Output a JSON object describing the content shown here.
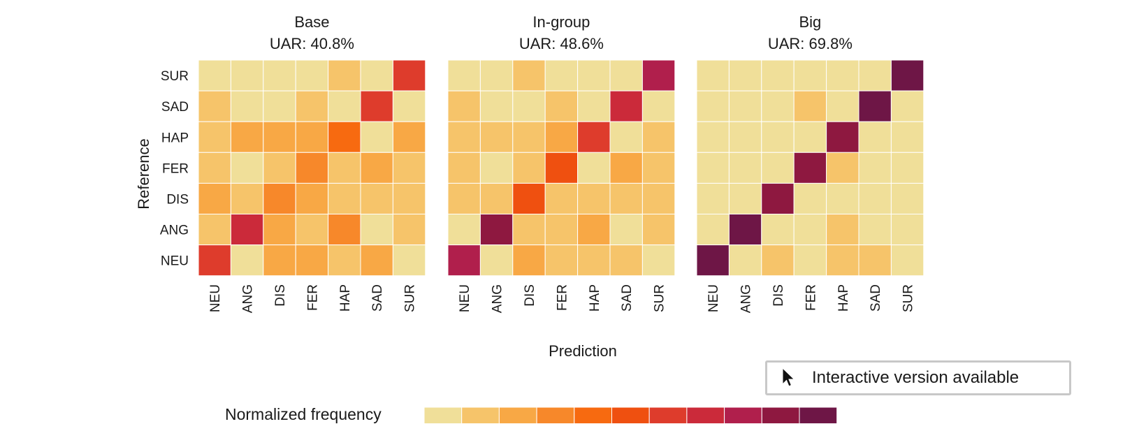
{
  "colors": {
    "palette": [
      "#f0df99",
      "#f6c46a",
      "#f8a845",
      "#f7882a",
      "#f76a10",
      "#ef5010",
      "#de3c2c",
      "#cb2a3a",
      "#b01f4c",
      "#8e1840",
      "#6e1646"
    ]
  },
  "legend": {
    "title": "Normalized frequency"
  },
  "interactive": {
    "label": "Interactive version available"
  },
  "chart_data": [
    {
      "type": "heatmap",
      "title": "Base",
      "subtitle": "UAR: 40.8%",
      "xlabel": "Prediction",
      "ylabel": "Reference",
      "x_categories": [
        "NEU",
        "ANG",
        "DIS",
        "FER",
        "HAP",
        "SAD",
        "SUR"
      ],
      "y_categories": [
        "SUR",
        "SAD",
        "HAP",
        "FER",
        "DIS",
        "ANG",
        "NEU"
      ],
      "levels": [
        [
          0,
          0,
          0,
          0,
          1,
          0,
          6
        ],
        [
          1,
          0,
          0,
          1,
          0,
          6,
          0
        ],
        [
          1,
          2,
          2,
          2,
          4,
          0,
          2
        ],
        [
          1,
          0,
          1,
          3,
          1,
          2,
          1
        ],
        [
          2,
          1,
          3,
          2,
          1,
          1,
          1
        ],
        [
          1,
          7,
          2,
          1,
          3,
          0,
          1
        ],
        [
          6,
          0,
          2,
          2,
          1,
          2,
          0
        ]
      ]
    },
    {
      "type": "heatmap",
      "title": "In-group",
      "subtitle": "UAR: 48.6%",
      "xlabel": "Prediction",
      "ylabel": "Reference",
      "x_categories": [
        "NEU",
        "ANG",
        "DIS",
        "FER",
        "HAP",
        "SAD",
        "SUR"
      ],
      "y_categories": [
        "SUR",
        "SAD",
        "HAP",
        "FER",
        "DIS",
        "ANG",
        "NEU"
      ],
      "levels": [
        [
          0,
          0,
          1,
          0,
          0,
          0,
          8
        ],
        [
          1,
          0,
          0,
          1,
          0,
          7,
          0
        ],
        [
          1,
          1,
          1,
          2,
          6,
          0,
          1
        ],
        [
          1,
          0,
          1,
          5,
          0,
          2,
          1
        ],
        [
          1,
          1,
          5,
          1,
          1,
          1,
          1
        ],
        [
          0,
          9,
          1,
          1,
          2,
          0,
          1
        ],
        [
          8,
          0,
          2,
          1,
          1,
          1,
          0
        ]
      ]
    },
    {
      "type": "heatmap",
      "title": "Big",
      "subtitle": "UAR: 69.8%",
      "xlabel": "Prediction",
      "ylabel": "Reference",
      "x_categories": [
        "NEU",
        "ANG",
        "DIS",
        "FER",
        "HAP",
        "SAD",
        "SUR"
      ],
      "y_categories": [
        "SUR",
        "SAD",
        "HAP",
        "FER",
        "DIS",
        "ANG",
        "NEU"
      ],
      "levels": [
        [
          0,
          0,
          0,
          0,
          0,
          0,
          10
        ],
        [
          0,
          0,
          0,
          1,
          0,
          10,
          0
        ],
        [
          0,
          0,
          0,
          0,
          9,
          0,
          0
        ],
        [
          0,
          0,
          0,
          9,
          1,
          0,
          0
        ],
        [
          0,
          0,
          9,
          0,
          0,
          0,
          0
        ],
        [
          0,
          10,
          0,
          0,
          1,
          0,
          0
        ],
        [
          10,
          0,
          1,
          0,
          1,
          1,
          0
        ]
      ]
    }
  ]
}
